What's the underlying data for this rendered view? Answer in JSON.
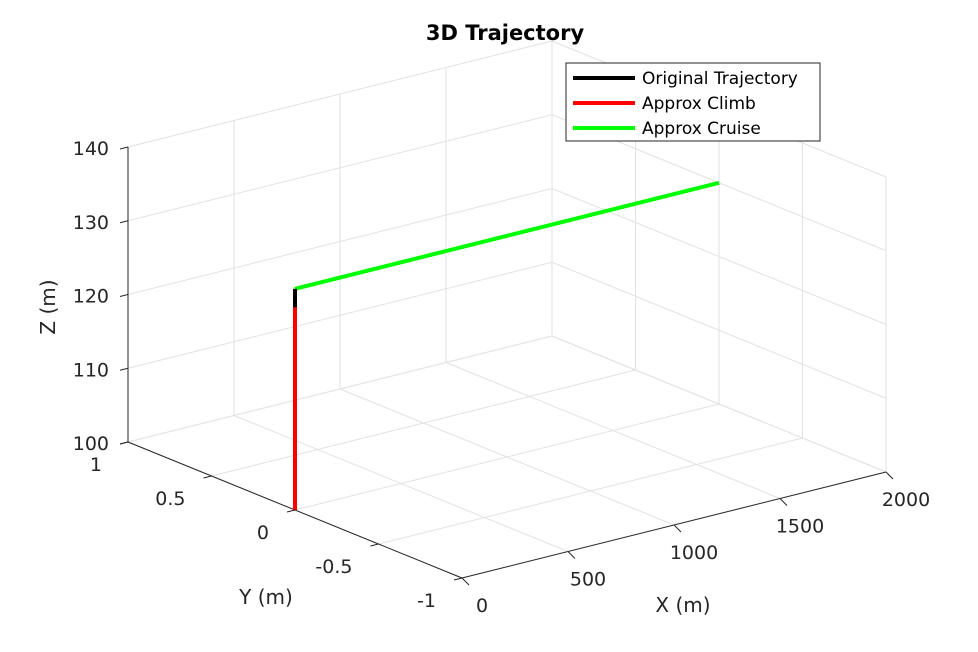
{
  "chart_data": {
    "type": "line",
    "projection": "3d",
    "title": "3D Trajectory",
    "xlabel": "X (m)",
    "ylabel": "Y (m)",
    "zlabel": "Z (m)",
    "xlim": [
      0,
      2000
    ],
    "ylim": [
      -1,
      1
    ],
    "zlim": [
      100,
      140
    ],
    "xticks": [
      "0",
      "500",
      "1000",
      "1500",
      "2000"
    ],
    "yticks": [
      "-1",
      "-0.5",
      "0",
      "0.5",
      "1"
    ],
    "zticks": [
      "100",
      "110",
      "120",
      "130",
      "140"
    ],
    "grid": true,
    "legend_position": "top-right",
    "series": [
      {
        "name": "Original Trajectory",
        "color": "#000000",
        "points": [
          [
            0,
            0,
            127.5
          ],
          [
            0,
            0,
            130
          ]
        ]
      },
      {
        "name": "Approx Climb",
        "color": "#ff0000",
        "points": [
          [
            0,
            0,
            100
          ],
          [
            0,
            0,
            128
          ]
        ]
      },
      {
        "name": "Approx Cruise",
        "color": "#00ff00",
        "points": [
          [
            0,
            0,
            130
          ],
          [
            2000,
            0,
            130
          ]
        ]
      }
    ]
  }
}
